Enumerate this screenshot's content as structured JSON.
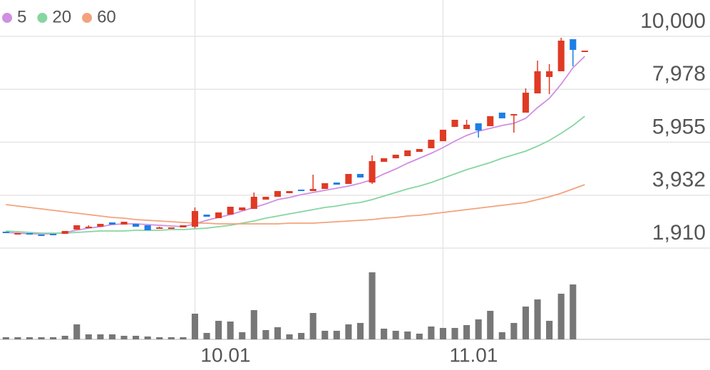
{
  "chart_data": {
    "type": "candlestick",
    "up_color": "#e03a24",
    "down_color": "#1d7fe6",
    "grid": true,
    "xlim": [
      -0.5,
      59.6
    ],
    "ylim": [
      1910,
      10000
    ],
    "yticks": [
      {
        "value": 1910,
        "label": "1,910"
      },
      {
        "value": 3932,
        "label": "3,932"
      },
      {
        "value": 5955,
        "label": "5,955"
      },
      {
        "value": 7978,
        "label": "7,978"
      },
      {
        "value": 10000,
        "label": "10,000"
      }
    ],
    "xticks": [
      {
        "value": 16,
        "label": "10.01"
      },
      {
        "value": 37,
        "label": "11.01"
      }
    ],
    "candles": {
      "open": [
        2537,
        2455,
        2482,
        2428,
        2455,
        2455,
        2618,
        2700,
        2727,
        2891,
        2809,
        2836,
        2782,
        2673,
        2673,
        2700,
        2727,
        3190,
        3054,
        3190,
        3354,
        3408,
        3762,
        3871,
        4007,
        4144,
        4089,
        4171,
        4416,
        4362,
        4743,
        4416,
        5206,
        5342,
        5424,
        5587,
        5724,
        5996,
        6541,
        6459,
        6677,
        6568,
        7086,
        7004,
        7086,
        7821,
        8448,
        8666,
        9891,
        9455
      ],
      "high": [
        2537,
        2482,
        2482,
        2428,
        2455,
        2564,
        2782,
        2782,
        2836,
        2891,
        2918,
        2836,
        2782,
        2727,
        2700,
        2782,
        3463,
        3190,
        3272,
        3490,
        3463,
        4035,
        3871,
        4089,
        4089,
        4144,
        4716,
        4389,
        4416,
        4743,
        4743,
        5451,
        5342,
        5478,
        5642,
        5696,
        6050,
        6432,
        6813,
        6813,
        6677,
        6949,
        7086,
        7031,
        8012,
        9074,
        8938,
        9946,
        9891,
        9455
      ],
      "low": [
        2482,
        2455,
        2455,
        2400,
        2428,
        2455,
        2618,
        2673,
        2727,
        2809,
        2809,
        2727,
        2591,
        2673,
        2673,
        2700,
        2673,
        3109,
        3054,
        3190,
        3354,
        3408,
        3762,
        3871,
        4007,
        4089,
        4089,
        4171,
        4334,
        4362,
        4607,
        4362,
        5206,
        5342,
        5424,
        5587,
        5724,
        5996,
        6541,
        6459,
        6132,
        6568,
        6868,
        6323,
        7086,
        7821,
        7794,
        8666,
        8856,
        9455
      ],
      "close": [
        2482,
        2482,
        2455,
        2400,
        2428,
        2564,
        2782,
        2727,
        2836,
        2809,
        2918,
        2727,
        2591,
        2700,
        2700,
        2782,
        3326,
        3109,
        3272,
        3490,
        3463,
        3871,
        3871,
        4089,
        4089,
        4089,
        4171,
        4389,
        4334,
        4743,
        4607,
        5233,
        5342,
        5478,
        5642,
        5696,
        6050,
        6432,
        6813,
        6623,
        6405,
        6949,
        6868,
        7031,
        7848,
        8666,
        8666,
        9837,
        9483,
        9455
      ]
    },
    "series": [
      {
        "name": "5",
        "color": "#cf8fe3",
        "values": [
          2509,
          2482,
          2455,
          2455,
          2455,
          2509,
          2591,
          2673,
          2727,
          2809,
          2836,
          2836,
          2809,
          2782,
          2754,
          2727,
          2836,
          2972,
          3081,
          3190,
          3326,
          3463,
          3599,
          3762,
          3844,
          3953,
          4035,
          4116,
          4198,
          4280,
          4389,
          4525,
          4743,
          4934,
          5152,
          5342,
          5533,
          5751,
          5996,
          6214,
          6377,
          6486,
          6595,
          6677,
          6868,
          7276,
          7630,
          8175,
          8802,
          9238
        ]
      },
      {
        "name": "20",
        "color": "#86d6a0",
        "values": [
          2564,
          2537,
          2509,
          2482,
          2482,
          2482,
          2509,
          2537,
          2564,
          2564,
          2564,
          2591,
          2591,
          2591,
          2618,
          2618,
          2645,
          2673,
          2727,
          2782,
          2863,
          2945,
          3054,
          3136,
          3218,
          3299,
          3381,
          3463,
          3517,
          3599,
          3653,
          3762,
          3899,
          4035,
          4171,
          4280,
          4416,
          4580,
          4743,
          4906,
          5043,
          5179,
          5342,
          5478,
          5615,
          5805,
          6023,
          6296,
          6595,
          6949
        ]
      },
      {
        "name": "60",
        "color": "#f2a37d",
        "values": [
          3572,
          3517,
          3463,
          3408,
          3354,
          3299,
          3245,
          3190,
          3136,
          3081,
          3054,
          3000,
          2972,
          2945,
          2918,
          2891,
          2863,
          2863,
          2836,
          2836,
          2836,
          2836,
          2836,
          2836,
          2863,
          2863,
          2863,
          2891,
          2918,
          2945,
          2972,
          3000,
          3054,
          3081,
          3136,
          3163,
          3218,
          3272,
          3326,
          3381,
          3435,
          3490,
          3544,
          3599,
          3653,
          3762,
          3871,
          4007,
          4171,
          4334
        ]
      }
    ],
    "vlim": [
      0,
      100
    ],
    "volume": {
      "color": "#777777",
      "values": [
        3,
        3,
        3,
        3,
        3,
        5,
        21,
        7,
        7,
        7,
        5,
        5,
        4,
        3,
        3,
        3,
        36,
        9,
        26,
        25,
        10,
        41,
        13,
        17,
        7,
        9,
        37,
        12,
        12,
        21,
        23,
        94,
        15,
        12,
        11,
        8,
        18,
        16,
        16,
        20,
        28,
        40,
        10,
        23,
        46,
        56,
        26,
        64,
        77,
        null
      ]
    }
  }
}
